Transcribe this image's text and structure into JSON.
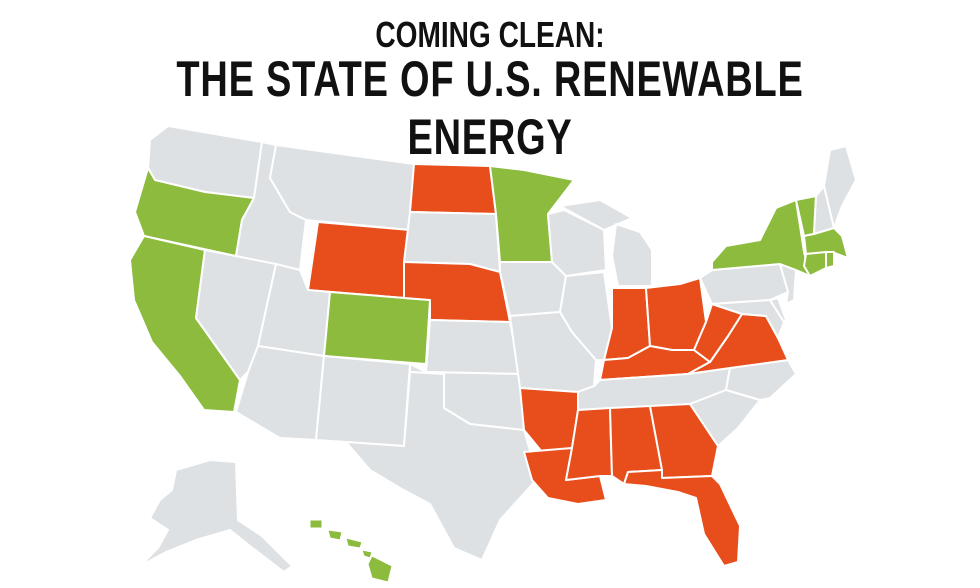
{
  "title": {
    "line1": "COMING CLEAN:",
    "line2": "THE STATE OF U.S. RENEWABLE ENERGY"
  },
  "colors": {
    "neutral": "#dde1e4",
    "green": "#8cbb3e",
    "orange": "#e84e1c",
    "text": "#111111",
    "border": "#ffffff"
  },
  "states": {
    "WA": "neutral",
    "OR": "green",
    "CA": "green",
    "ID": "neutral",
    "NV": "neutral",
    "MT": "neutral",
    "WY": "orange",
    "UT": "neutral",
    "AZ": "neutral",
    "CO": "green",
    "NM": "neutral",
    "ND": "orange",
    "SD": "neutral",
    "NE": "orange",
    "KS": "neutral",
    "OK": "neutral",
    "TX": "neutral",
    "MN": "green",
    "IA": "neutral",
    "MO": "neutral",
    "AR": "orange",
    "LA": "orange",
    "WI": "neutral",
    "IL": "neutral",
    "MI": "neutral",
    "IN": "orange",
    "OH": "orange",
    "KY": "orange",
    "TN": "neutral",
    "MS": "orange",
    "AL": "orange",
    "GA": "orange",
    "FL": "orange",
    "SC": "neutral",
    "NC": "neutral",
    "VA": "orange",
    "WV": "orange",
    "PA": "neutral",
    "NY": "green",
    "VT": "green",
    "NH": "neutral",
    "ME": "neutral",
    "MA": "green",
    "CT": "green",
    "RI": "green",
    "NJ": "neutral",
    "DE": "neutral",
    "MD": "neutral",
    "AK": "neutral",
    "HI": "green"
  }
}
